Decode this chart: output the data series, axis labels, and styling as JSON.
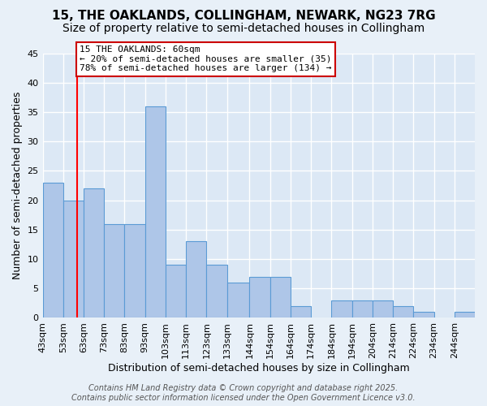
{
  "title": "15, THE OAKLANDS, COLLINGHAM, NEWARK, NG23 7RG",
  "subtitle": "Size of property relative to semi-detached houses in Collingham",
  "xlabel": "Distribution of semi-detached houses by size in Collingham",
  "ylabel": "Number of semi-detached properties",
  "footer1": "Contains HM Land Registry data © Crown copyright and database right 2025.",
  "footer2": "Contains public sector information licensed under the Open Government Licence v3.0.",
  "annotation_title": "15 THE OAKLANDS: 60sqm",
  "annotation_line2": "← 20% of semi-detached houses are smaller (35)",
  "annotation_line3": "78% of semi-detached houses are larger (134) →",
  "property_size_sqm": 60,
  "bar_centers": [
    48,
    58,
    68,
    78,
    88,
    98,
    108,
    118,
    128,
    138.5,
    149,
    159,
    169,
    179,
    189,
    199,
    209,
    219,
    229,
    239,
    249
  ],
  "bar_widths": [
    10,
    10,
    10,
    10,
    10,
    10,
    10,
    10,
    10,
    11,
    10,
    10,
    10,
    10,
    10,
    10,
    10,
    10,
    10,
    10,
    10
  ],
  "bar_heights": [
    23,
    20,
    22,
    16,
    16,
    36,
    9,
    13,
    9,
    6,
    7,
    7,
    2,
    0,
    3,
    3,
    3,
    2,
    1,
    0,
    1
  ],
  "categories": [
    "43sqm",
    "53sqm",
    "63sqm",
    "73sqm",
    "83sqm",
    "93sqm",
    "103sqm",
    "113sqm",
    "123sqm",
    "133sqm",
    "144sqm",
    "154sqm",
    "164sqm",
    "174sqm",
    "184sqm",
    "194sqm",
    "204sqm",
    "214sqm",
    "224sqm",
    "234sqm",
    "244sqm"
  ],
  "xtick_pos": [
    43,
    53,
    63,
    73,
    83,
    93,
    103,
    113,
    123,
    133,
    144,
    154,
    164,
    174,
    184,
    194,
    204,
    214,
    224,
    234,
    244
  ],
  "bar_color": "#aec6e8",
  "bar_edge_color": "#5b9bd5",
  "red_line_x": 60,
  "xlim": [
    43,
    254
  ],
  "ylim": [
    0,
    45
  ],
  "yticks": [
    0,
    5,
    10,
    15,
    20,
    25,
    30,
    35,
    40,
    45
  ],
  "bg_color": "#e8f0f8",
  "plot_bg_color": "#dce8f5",
  "grid_color": "#ffffff",
  "annotation_box_color": "#ffffff",
  "annotation_box_edge": "#cc0000",
  "title_fontsize": 11,
  "subtitle_fontsize": 10,
  "axis_label_fontsize": 9,
  "tick_fontsize": 8,
  "annotation_fontsize": 8,
  "footer_fontsize": 7
}
